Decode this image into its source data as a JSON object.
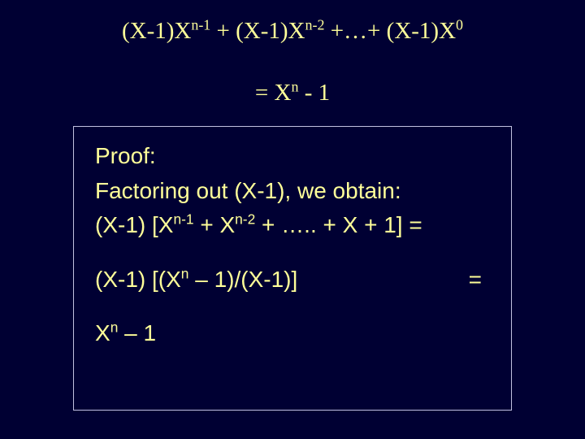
{
  "colors": {
    "background": "#000033",
    "text": "#ffff99",
    "box_border": "#c0c0e0"
  },
  "title_terms": {
    "t1_base": "(X-1)X",
    "t1_exp": "n-1",
    "plus1": " + ",
    "t2_base": "(X-1)X",
    "t2_exp": "n-2",
    "dots": " +…+ ",
    "t3_base": "(X-1)X",
    "t3_exp": "0"
  },
  "equals_line": {
    "eq": "= X",
    "exp": "n",
    "tail": " - 1"
  },
  "proof": {
    "heading": "Proof:",
    "line2": "Factoring out (X-1), we obtain:",
    "line3": {
      "a": "(X-1) [X",
      "e1": "n-1",
      "b": " + X",
      "e2": "n-2",
      "c": " + ….. + X + 1] ="
    },
    "line4": {
      "a": "(X-1) [(X",
      "e1": "n",
      "b": " – 1)/(X-1)]",
      "eq": "="
    },
    "line5": {
      "a": "X",
      "e1": "n",
      "b": " – 1"
    }
  }
}
